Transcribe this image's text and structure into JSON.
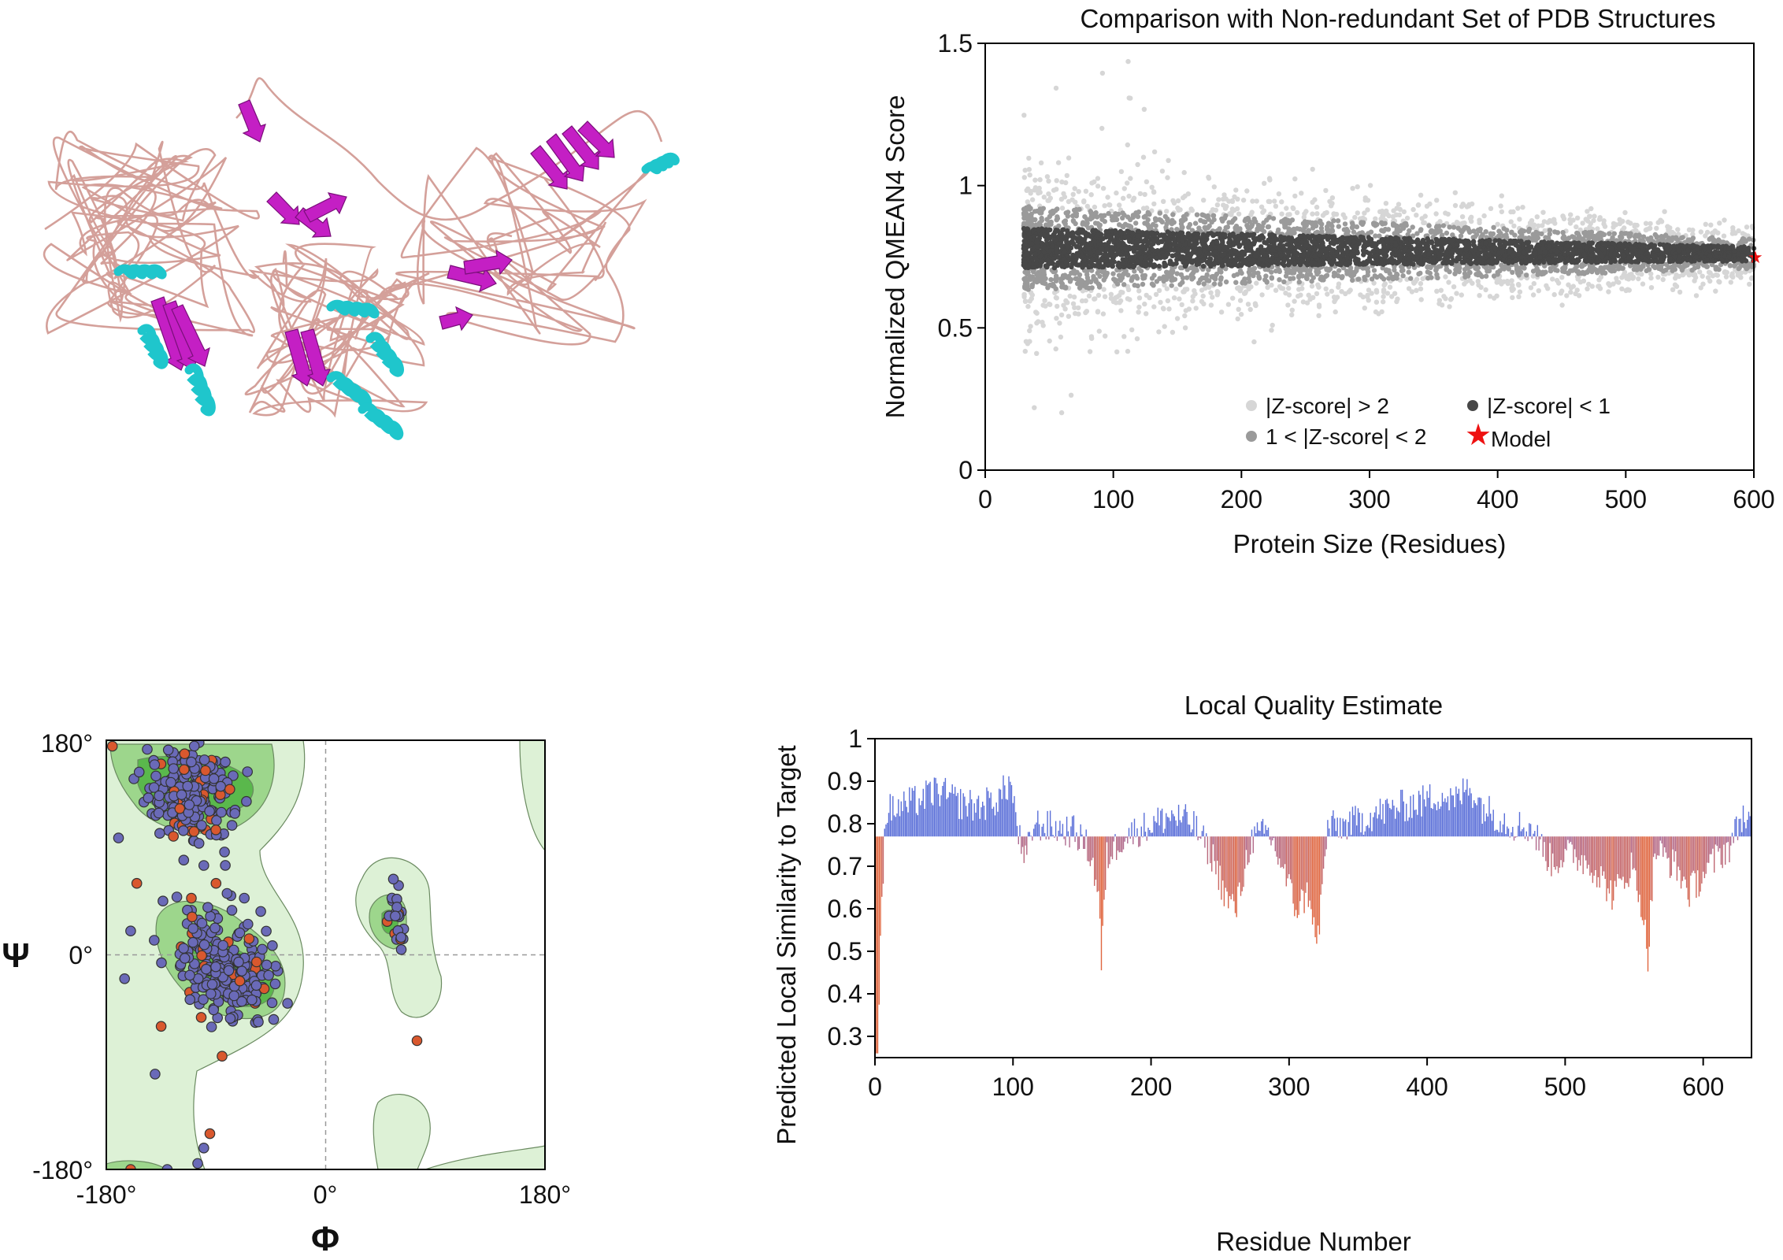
{
  "colors": {
    "coil": "#d4a09a",
    "strand": "#c41fc4",
    "helix": "#1fc6cc",
    "z_gt2": "#d6d6d6",
    "z_1to2": "#9a9a9a",
    "z_lt1": "#474747",
    "model_star": "#ee1111",
    "bar_high": "#5a6fd8",
    "bar_low": "#e0663f",
    "rama_outer": "#ddf1d6",
    "rama_inner": "#9dd68c",
    "rama_core": "#5ab84c",
    "dot_fill": "#6a6ab8",
    "dot_outlier": "#d9582e"
  },
  "chart_data": [
    {
      "id": "qmean",
      "type": "scatter",
      "title": "Comparison with Non-redundant Set of PDB Structures",
      "xlabel": "Protein Size (Residues)",
      "ylabel": "Normalized QMEAN4 Score",
      "xlim": [
        0,
        600
      ],
      "ylim": [
        0,
        1.5
      ],
      "xticks": [
        "0",
        "100",
        "200",
        "300",
        "400",
        "500",
        "600"
      ],
      "yticks": [
        "0",
        "0.5",
        "1",
        "1.5"
      ],
      "xtick_values": [
        0,
        100,
        200,
        300,
        400,
        500,
        600
      ],
      "ytick_values": [
        0,
        0.5,
        1,
        1.5
      ],
      "reference_trend": [
        {
          "x": 30,
          "y": 0.78
        },
        {
          "x": 600,
          "y": 0.76
        }
      ],
      "band_z_lt1_halfwidth": [
        {
          "x": 30,
          "y": 0.07
        },
        {
          "x": 600,
          "y": 0.025
        }
      ],
      "model": {
        "x": 600,
        "y": 0.75
      },
      "legend": {
        "z_gt2": "|Z-score| > 2",
        "z_lt1": "|Z-score| < 1",
        "z_1to2": "1 < |Z-score| < 2",
        "model": "Model"
      }
    },
    {
      "id": "ramachandran",
      "type": "scatter",
      "xlabel": "Φ",
      "ylabel": "Ψ",
      "xlim": [
        -180,
        180
      ],
      "ylim": [
        -180,
        180
      ],
      "xticks": [
        "-180°",
        "0°",
        "180°"
      ],
      "yticks": [
        "-180°",
        "0°",
        "180°"
      ],
      "clusters": [
        {
          "region": "beta",
          "phi": -110,
          "psi": 135,
          "count": 190
        },
        {
          "region": "alpha-right",
          "phi": -80,
          "psi": -10,
          "count": 210
        },
        {
          "region": "alpha-left",
          "phi": 60,
          "psi": 30,
          "count": 22
        }
      ],
      "outliers": [
        {
          "phi": -175,
          "psi": 175
        },
        {
          "phi": -170,
          "psi": 98
        },
        {
          "phi": -135,
          "psi": -60
        },
        {
          "phi": 75,
          "psi": -72
        },
        {
          "phi": -100,
          "psi": -162
        },
        {
          "phi": -95,
          "psi": -150
        },
        {
          "phi": -105,
          "psi": -175
        },
        {
          "phi": -130,
          "psi": -180
        },
        {
          "phi": -160,
          "psi": -180
        },
        {
          "phi": -85,
          "psi": -85
        },
        {
          "phi": -140,
          "psi": -100
        },
        {
          "phi": -155,
          "psi": 60
        },
        {
          "phi": -160,
          "psi": 20
        },
        {
          "phi": -165,
          "psi": -20
        },
        {
          "phi": -100,
          "psi": 75
        },
        {
          "phi": -90,
          "psi": 60
        }
      ]
    },
    {
      "id": "local_quality",
      "type": "bar",
      "title": "Local Quality Estimate",
      "xlabel": "Residue Number",
      "ylabel": "Predicted Local Similarity to Target",
      "xlim": [
        0,
        635
      ],
      "ylim": [
        0.25,
        1.0
      ],
      "baseline": 0.77,
      "xticks": [
        "0",
        "100",
        "200",
        "300",
        "400",
        "500",
        "600"
      ],
      "xtick_values": [
        0,
        100,
        200,
        300,
        400,
        500,
        600
      ],
      "yticks": [
        "0.3",
        "0.4",
        "0.5",
        "0.6",
        "0.7",
        "0.8",
        "0.9",
        "1"
      ],
      "ytick_values": [
        0.3,
        0.4,
        0.5,
        0.6,
        0.7,
        0.8,
        0.9,
        1.0
      ],
      "profile": [
        {
          "x": 0,
          "y": 0.26
        },
        {
          "x": 2,
          "y": 0.26
        },
        {
          "x": 4,
          "y": 0.55
        },
        {
          "x": 8,
          "y": 0.83
        },
        {
          "x": 20,
          "y": 0.84
        },
        {
          "x": 35,
          "y": 0.86
        },
        {
          "x": 45,
          "y": 0.88
        },
        {
          "x": 60,
          "y": 0.85
        },
        {
          "x": 75,
          "y": 0.84
        },
        {
          "x": 90,
          "y": 0.86
        },
        {
          "x": 98,
          "y": 0.9
        },
        {
          "x": 103,
          "y": 0.8
        },
        {
          "x": 108,
          "y": 0.7
        },
        {
          "x": 115,
          "y": 0.8
        },
        {
          "x": 130,
          "y": 0.79
        },
        {
          "x": 145,
          "y": 0.78
        },
        {
          "x": 155,
          "y": 0.74
        },
        {
          "x": 162,
          "y": 0.64
        },
        {
          "x": 164,
          "y": 0.47
        },
        {
          "x": 168,
          "y": 0.72
        },
        {
          "x": 180,
          "y": 0.77
        },
        {
          "x": 195,
          "y": 0.79
        },
        {
          "x": 215,
          "y": 0.82
        },
        {
          "x": 230,
          "y": 0.8
        },
        {
          "x": 245,
          "y": 0.72
        },
        {
          "x": 255,
          "y": 0.62
        },
        {
          "x": 262,
          "y": 0.6
        },
        {
          "x": 272,
          "y": 0.76
        },
        {
          "x": 285,
          "y": 0.78
        },
        {
          "x": 295,
          "y": 0.7
        },
        {
          "x": 305,
          "y": 0.6
        },
        {
          "x": 315,
          "y": 0.64
        },
        {
          "x": 320,
          "y": 0.5
        },
        {
          "x": 328,
          "y": 0.79
        },
        {
          "x": 345,
          "y": 0.8
        },
        {
          "x": 360,
          "y": 0.82
        },
        {
          "x": 380,
          "y": 0.84
        },
        {
          "x": 395,
          "y": 0.85
        },
        {
          "x": 410,
          "y": 0.87
        },
        {
          "x": 420,
          "y": 0.85
        },
        {
          "x": 430,
          "y": 0.89
        },
        {
          "x": 440,
          "y": 0.84
        },
        {
          "x": 460,
          "y": 0.8
        },
        {
          "x": 475,
          "y": 0.79
        },
        {
          "x": 490,
          "y": 0.71
        },
        {
          "x": 505,
          "y": 0.73
        },
        {
          "x": 520,
          "y": 0.7
        },
        {
          "x": 535,
          "y": 0.63
        },
        {
          "x": 548,
          "y": 0.7
        },
        {
          "x": 555,
          "y": 0.62
        },
        {
          "x": 560,
          "y": 0.49
        },
        {
          "x": 565,
          "y": 0.74
        },
        {
          "x": 580,
          "y": 0.7
        },
        {
          "x": 590,
          "y": 0.64
        },
        {
          "x": 600,
          "y": 0.68
        },
        {
          "x": 610,
          "y": 0.72
        },
        {
          "x": 620,
          "y": 0.75
        },
        {
          "x": 628,
          "y": 0.82
        },
        {
          "x": 635,
          "y": 0.8
        }
      ]
    }
  ]
}
